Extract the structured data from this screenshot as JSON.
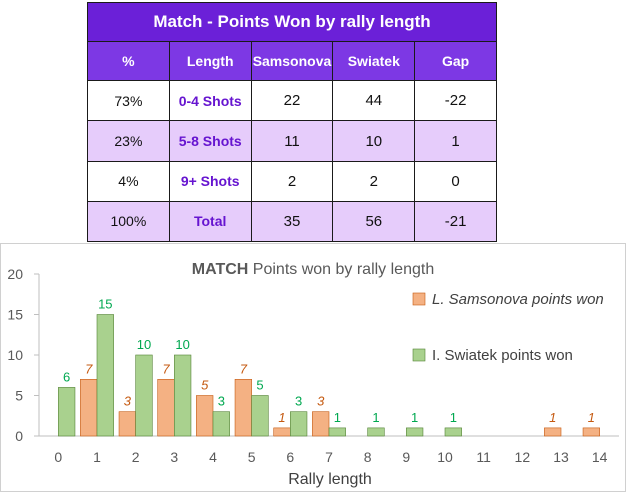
{
  "table": {
    "title": "Match - Points Won by rally length",
    "headers": [
      "%",
      "Length",
      "Samsonova",
      "Swiatek",
      "Gap"
    ],
    "rows": [
      {
        "pct": "73%",
        "length": "0-4 Shots",
        "samsonova": "22",
        "swiatek": "44",
        "gap": "-22"
      },
      {
        "pct": "23%",
        "length": "5-8 Shots",
        "samsonova": "11",
        "swiatek": "10",
        "gap": "1"
      },
      {
        "pct": "4%",
        "length": "9+ Shots",
        "samsonova": "2",
        "swiatek": "2",
        "gap": "0"
      },
      {
        "pct": "100%",
        "length": "Total",
        "samsonova": "35",
        "swiatek": "56",
        "gap": "-21"
      }
    ]
  },
  "chart_data": {
    "type": "bar",
    "title_bold": "MATCH",
    "title_rest": " Points won by rally length",
    "xlabel": "Rally length",
    "ylabel": "",
    "ylim": [
      0,
      20
    ],
    "yticks": [
      0,
      5,
      10,
      15,
      20
    ],
    "categories": [
      "0",
      "1",
      "2",
      "3",
      "4",
      "5",
      "6",
      "7",
      "8",
      "9",
      "10",
      "11",
      "12",
      "13",
      "14"
    ],
    "series": [
      {
        "name": "L. Samsonova points won",
        "color": "#f4b183",
        "label_color": "#c55a11",
        "values": [
          0,
          7,
          3,
          7,
          5,
          7,
          1,
          3,
          0,
          0,
          0,
          0,
          0,
          1,
          1
        ]
      },
      {
        "name": "I. Swiatek points won",
        "color": "#a9d18e",
        "label_color": "#00a850",
        "values": [
          6,
          15,
          10,
          10,
          3,
          5,
          3,
          1,
          1,
          1,
          1,
          0,
          0,
          0,
          0
        ]
      }
    ],
    "legend_position": "right",
    "grid": false
  }
}
